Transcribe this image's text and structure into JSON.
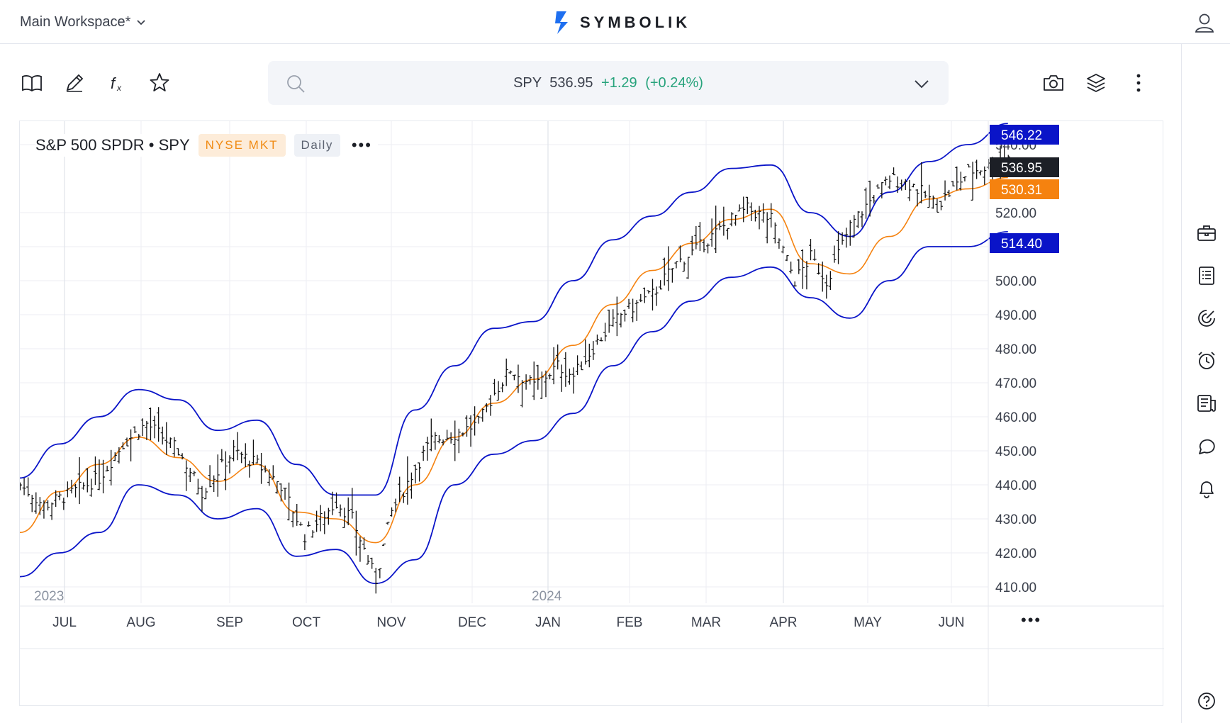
{
  "topbar": {
    "workspace_label": "Main Workspace*",
    "brand_name": "SYMBOLIK"
  },
  "search": {
    "symbol": "SPY",
    "price": "536.95",
    "change": "+1.29",
    "change_pct": "(+0.24%)"
  },
  "chart_header": {
    "title": "S&P 500 SPDR • SPY",
    "exchange": "NYSE MKT",
    "interval": "Daily",
    "more": "•••"
  },
  "colors": {
    "upper_band": "#0a14c8",
    "lower_band": "#0a14c8",
    "middle_band": "#f5820f",
    "change_positive": "#27a37c",
    "last_price_label": "#1c1f26"
  },
  "chart_data": {
    "type": "bar",
    "subtype": "ohlc",
    "symbol": "SPY",
    "x_labels": [
      "JUL",
      "AUG",
      "SEP",
      "OCT",
      "NOV",
      "DEC",
      "JAN",
      "FEB",
      "MAR",
      "APR",
      "MAY",
      "JUN"
    ],
    "year_labels": [
      "2023",
      "2024"
    ],
    "y_ticks": [
      "410.00",
      "420.00",
      "430.00",
      "440.00",
      "450.00",
      "460.00",
      "470.00",
      "480.00",
      "490.00",
      "500.00",
      "510.00",
      "520.00",
      "540.00"
    ],
    "ylim": [
      405,
      548
    ],
    "grid": true,
    "price_labels": {
      "upper": "546.22",
      "last": "536.95",
      "middle": "530.31",
      "lower": "514.40"
    },
    "upper_band": {
      "x": [
        0,
        0.5,
        1,
        1.5,
        2,
        2.5,
        3,
        3.5,
        4,
        4.5,
        5,
        5.5,
        6,
        6.5,
        7,
        7.5,
        8,
        8.5,
        9,
        9.5,
        10,
        10.5,
        11,
        11.5,
        12,
        12.5
      ],
      "y": [
        442,
        452,
        460,
        468,
        465,
        456,
        459,
        446,
        437,
        437,
        462,
        475,
        486,
        488,
        500,
        512,
        519,
        526,
        533,
        534,
        520,
        513,
        526,
        535,
        540,
        546.2
      ]
    },
    "middle_band": {
      "x": [
        0,
        0.5,
        1,
        1.5,
        2,
        2.5,
        3,
        3.5,
        4,
        4.5,
        5,
        5.5,
        6,
        6.5,
        7,
        7.5,
        8,
        8.5,
        9,
        9.5,
        10,
        10.5,
        11,
        11.5,
        12,
        12.5
      ],
      "y": [
        426,
        438,
        446,
        454,
        448,
        441,
        446,
        432,
        430,
        423,
        440,
        454,
        464,
        471,
        481,
        493,
        503,
        511,
        518,
        521,
        505,
        502,
        513,
        524,
        527,
        530.3
      ]
    },
    "lower_band": {
      "x": [
        0,
        0.5,
        1,
        1.5,
        2,
        2.5,
        3,
        3.5,
        4,
        4.5,
        5,
        5.5,
        6,
        6.5,
        7,
        7.5,
        8,
        8.5,
        9,
        9.5,
        10,
        10.5,
        11,
        11.5,
        12,
        12.5
      ],
      "y": [
        413,
        420,
        426,
        440,
        437,
        430,
        433,
        419,
        421,
        411,
        418,
        440,
        449,
        453,
        461,
        475,
        485,
        494,
        501,
        504,
        495,
        489,
        500,
        510,
        510,
        514.4
      ]
    },
    "price_path": {
      "x": [
        0,
        0.3,
        0.6,
        1.0,
        1.3,
        1.6,
        2.0,
        2.3,
        2.7,
        3.0,
        3.3,
        3.6,
        4.0,
        4.2,
        4.4,
        4.5,
        4.7,
        5.0,
        5.2,
        5.5,
        5.8,
        6.0,
        6.2,
        6.5,
        6.8,
        7.0,
        7.3,
        7.6,
        8.0,
        8.3,
        8.6,
        8.8,
        9.0,
        9.2,
        9.5,
        9.8,
        10.0,
        10.2,
        10.5,
        10.7,
        11.0,
        11.3,
        11.6,
        12.0,
        12.3,
        12.5
      ],
      "y": [
        440,
        434,
        437,
        442,
        452,
        458,
        450,
        438,
        450,
        446,
        440,
        425,
        435,
        430,
        418,
        412,
        432,
        445,
        453,
        455,
        458,
        467,
        474,
        469,
        475,
        472,
        482,
        490,
        496,
        505,
        510,
        514,
        518,
        521,
        518,
        500,
        507,
        500,
        516,
        522,
        530,
        528,
        522,
        532,
        534,
        536.95
      ]
    },
    "price_range": [
      409,
      536.95
    ]
  }
}
